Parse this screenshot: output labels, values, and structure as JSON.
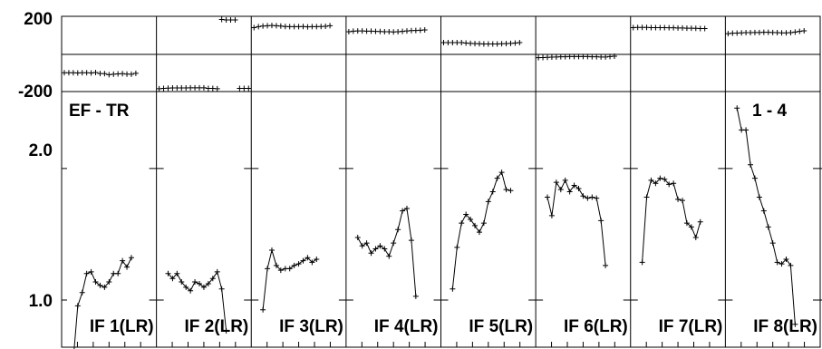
{
  "chart_data": {
    "type": "line",
    "title": "",
    "annotations": {
      "top_left": "EF - TR",
      "top_right": "1 - 4"
    },
    "phase_panel": {
      "ylim": [
        -200,
        200
      ],
      "tick_labels": [
        "200",
        "-200"
      ]
    },
    "amp_panel": {
      "scale": "log",
      "ylim": [
        0.78,
        3.0
      ],
      "tick_labels": [
        "2.0",
        "1.0"
      ]
    },
    "x_per_panel": 20,
    "panels": [
      {
        "label": "IF 1(LR)",
        "phase_values": [
          -100,
          -100,
          -100,
          -101,
          -100,
          -100,
          -101,
          -99,
          -104,
          -105,
          -110,
          -108,
          -106,
          -105,
          -107,
          -108,
          -103
        ],
        "amp_values": [
          0.73,
          0.97,
          1.04,
          1.15,
          1.16,
          1.1,
          1.08,
          1.07,
          1.1,
          1.15,
          1.15,
          1.23,
          1.19,
          1.25
        ]
      },
      {
        "label": "IF 2(LR)",
        "phase_values": [
          -185,
          -183,
          -182,
          -181,
          -181,
          -181,
          -181,
          -180,
          -180,
          -180,
          -180,
          -183,
          -183,
          -185,
          183,
          181,
          181,
          181,
          -183,
          -183,
          -183
        ],
        "amp_values": [
          1.15,
          1.12,
          1.15,
          1.1,
          1.07,
          1.05,
          1.1,
          1.09,
          1.07,
          1.09,
          1.12,
          1.16,
          1.06,
          0.85
        ]
      },
      {
        "label": "IF 3(LR)",
        "phase_values": [
          140,
          145,
          148,
          150,
          151,
          150,
          148,
          146,
          145,
          145,
          145,
          146,
          144,
          145,
          145,
          146,
          147,
          150
        ],
        "amp_values": [
          0.95,
          1.18,
          1.3,
          1.2,
          1.17,
          1.18,
          1.18,
          1.2,
          1.21,
          1.23,
          1.25,
          1.22,
          1.24
        ]
      },
      {
        "label": "IF 4(LR)",
        "phase_values": [
          118,
          121,
          122,
          122,
          121,
          121,
          120,
          119,
          118,
          118,
          117,
          118,
          120,
          122,
          124,
          125,
          126,
          128
        ],
        "amp_values": [
          1.39,
          1.33,
          1.35,
          1.28,
          1.31,
          1.33,
          1.31,
          1.26,
          1.35,
          1.45,
          1.6,
          1.62,
          1.37,
          1.02
        ]
      },
      {
        "label": "IF 5(LR)",
        "phase_values": [
          60,
          60,
          60,
          60,
          60,
          58,
          56,
          55,
          54,
          53,
          53,
          53,
          53,
          54,
          55,
          56,
          58,
          60
        ],
        "amp_values": [
          1.06,
          1.32,
          1.5,
          1.57,
          1.53,
          1.48,
          1.43,
          1.5,
          1.68,
          1.77,
          1.9,
          1.96,
          1.79,
          1.78
        ]
      },
      {
        "label": "IF 6(LR)",
        "phase_values": [
          -20,
          -19,
          -18,
          -17,
          -16,
          -15,
          -15,
          -14,
          -14,
          -14,
          -14,
          -14,
          -15,
          -15,
          -16,
          -16,
          -14,
          -12
        ],
        "amp_values": [
          1.72,
          1.56,
          1.86,
          1.79,
          1.88,
          1.77,
          1.83,
          1.8,
          1.73,
          1.71,
          1.72,
          1.71,
          1.52,
          1.2
        ]
      },
      {
        "label": "IF 7(LR)",
        "phase_values": [
          140,
          141,
          141,
          141,
          140,
          140,
          140,
          140,
          139,
          139,
          138,
          138,
          137,
          137,
          136,
          135,
          135
        ],
        "amp_values": [
          1.22,
          1.72,
          1.88,
          1.85,
          1.9,
          1.89,
          1.84,
          1.85,
          1.7,
          1.69,
          1.5,
          1.47,
          1.39,
          1.51
        ]
      },
      {
        "label": "IF 8(LR)",
        "phase_values": [
          108,
          110,
          111,
          112,
          113,
          113,
          114,
          114,
          115,
          115,
          114,
          113,
          112,
          112,
          113,
          116,
          120,
          123
        ],
        "amp_values": [
          2.75,
          2.45,
          2.45,
          2.04,
          1.9,
          1.72,
          1.6,
          1.47,
          1.35,
          1.22,
          1.21,
          1.24,
          1.2,
          0.88
        ]
      }
    ]
  }
}
